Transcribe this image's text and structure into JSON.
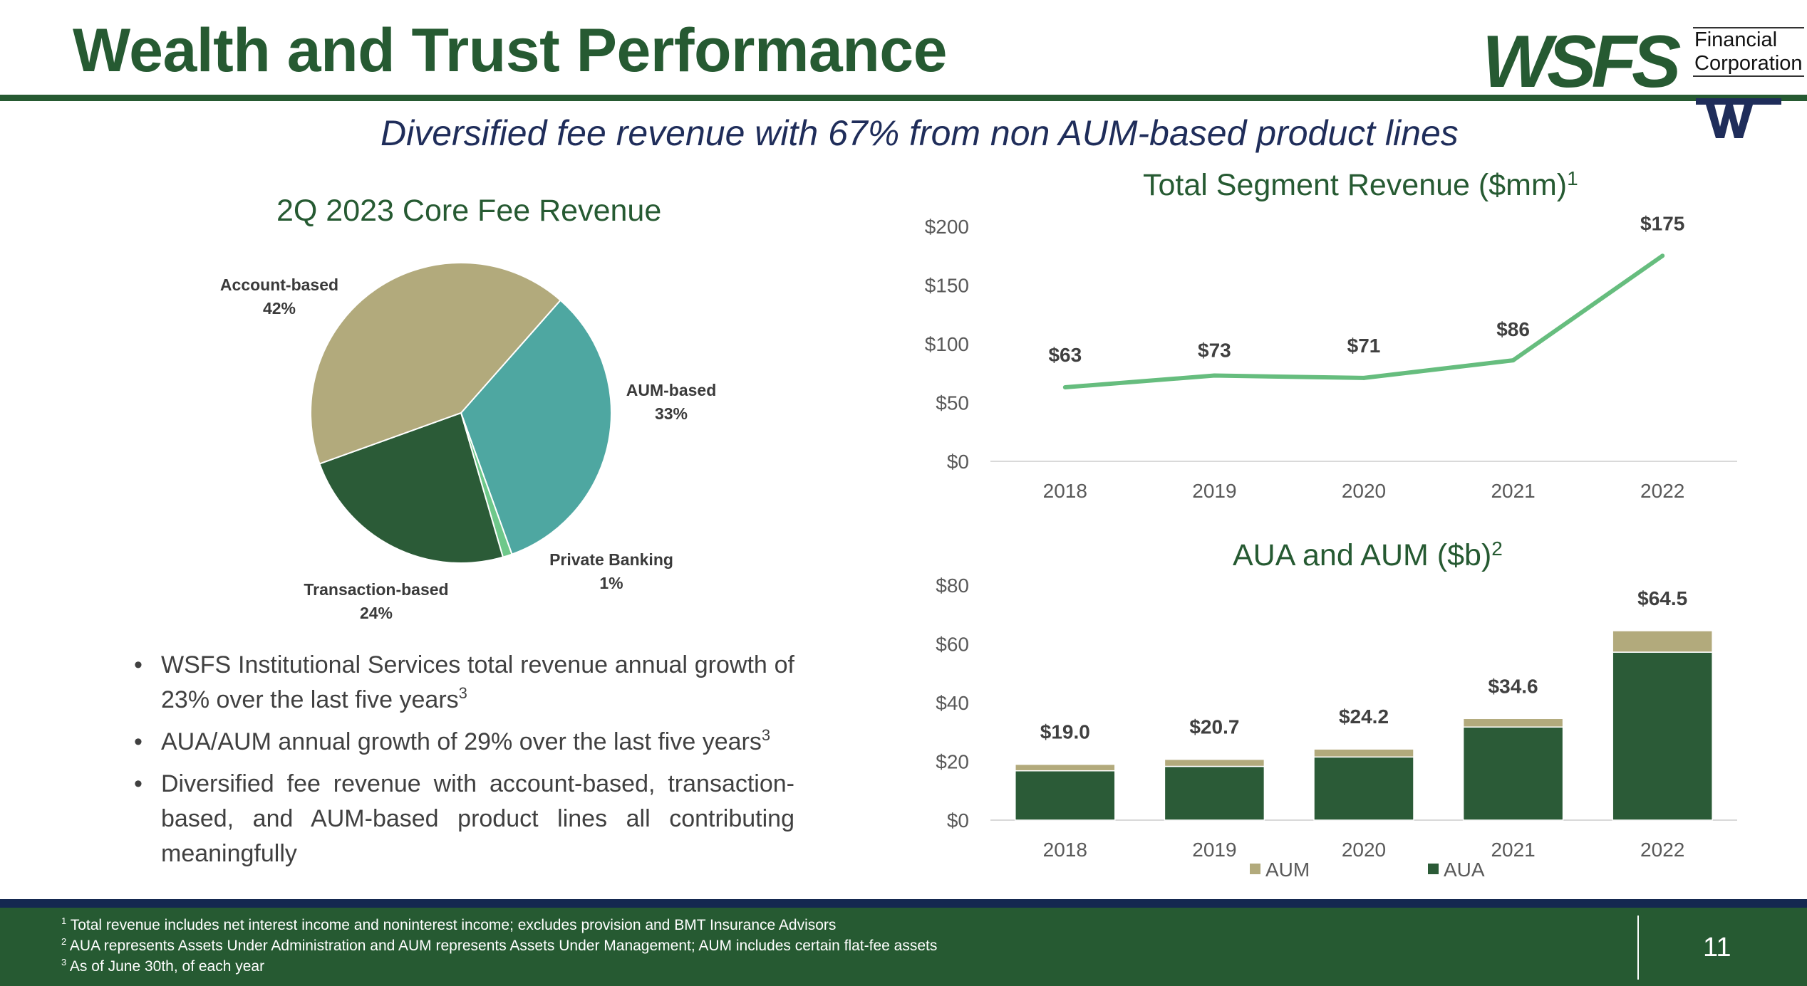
{
  "header": {
    "title": "Wealth and Trust Performance",
    "subtitle": "Diversified fee revenue with 67% from non AUM-based product lines",
    "logo": {
      "word": "WSFS",
      "sub_line1": "Financial",
      "sub_line2": "Corporation"
    }
  },
  "colors": {
    "brand_green": "#265a32",
    "navy": "#1f2d5a",
    "tan": "#b2aa7c",
    "teal": "#4ea7a1",
    "light_green": "#6ec88a",
    "line_green": "#66bd7e"
  },
  "bullets": [
    {
      "text": "WSFS Institutional Services total revenue annual growth of 23% over the last five years",
      "sup": "3"
    },
    {
      "text": "AUA/AUM annual growth of 29% over the last five years",
      "sup": "3"
    },
    {
      "text": "Diversified fee revenue with account-based, transaction-based, and AUM-based product lines all contributing meaningfully",
      "sup": ""
    }
  ],
  "footer": {
    "footnotes": [
      {
        "sup": "1",
        "text": "Total revenue includes net interest income and noninterest income; excludes provision and BMT Insurance Advisors"
      },
      {
        "sup": "2",
        "text": "AUA represents Assets Under Administration and AUM represents Assets Under Management; AUM includes certain flat-fee assets"
      },
      {
        "sup": "3",
        "text": "As of June 30th, of each year"
      }
    ],
    "page_number": "11"
  },
  "chart_data": [
    {
      "type": "pie",
      "title": "2Q 2023 Core Fee Revenue",
      "slices": [
        {
          "label": "AUM-based",
          "value": 33,
          "display": "33%",
          "color": "#4ea7a1"
        },
        {
          "label": "Private Banking",
          "value": 1,
          "display": "1%",
          "color": "#6ec88a"
        },
        {
          "label": "Transaction-based",
          "value": 24,
          "display": "24%",
          "color": "#2b5b37"
        },
        {
          "label": "Account-based",
          "value": 42,
          "display": "42%",
          "color": "#b2aa7c"
        }
      ]
    },
    {
      "type": "line",
      "title": "Total Segment Revenue ($mm)",
      "title_sup": "1",
      "categories": [
        "2018",
        "2019",
        "2020",
        "2021",
        "2022"
      ],
      "values": [
        63,
        73,
        71,
        86,
        175
      ],
      "data_labels": [
        "$63",
        "$73",
        "$71",
        "$86",
        "$175"
      ],
      "yticks": [
        "$0",
        "$50",
        "$100",
        "$150",
        "$200"
      ],
      "ylim": [
        0,
        200
      ],
      "grid": false,
      "color": "#66bd7e"
    },
    {
      "type": "bar",
      "stacked": true,
      "title": "AUA and AUM ($b)",
      "title_sup": "2",
      "categories": [
        "2018",
        "2019",
        "2020",
        "2021",
        "2022"
      ],
      "series": [
        {
          "name": "AUA",
          "values": [
            16.8,
            18.3,
            21.5,
            31.7,
            57.2
          ],
          "color": "#2b5b37"
        },
        {
          "name": "AUM",
          "values": [
            2.2,
            2.4,
            2.7,
            2.9,
            7.3
          ],
          "color": "#b2aa7c"
        }
      ],
      "totals": [
        "$19.0",
        "$20.7",
        "$24.2",
        "$34.6",
        "$64.5"
      ],
      "yticks": [
        "$0",
        "$20",
        "$40",
        "$60",
        "$80"
      ],
      "ylim": [
        0,
        80
      ],
      "legend_position": "bottom",
      "legend_order": [
        "AUM",
        "AUA"
      ],
      "grid": false
    }
  ]
}
